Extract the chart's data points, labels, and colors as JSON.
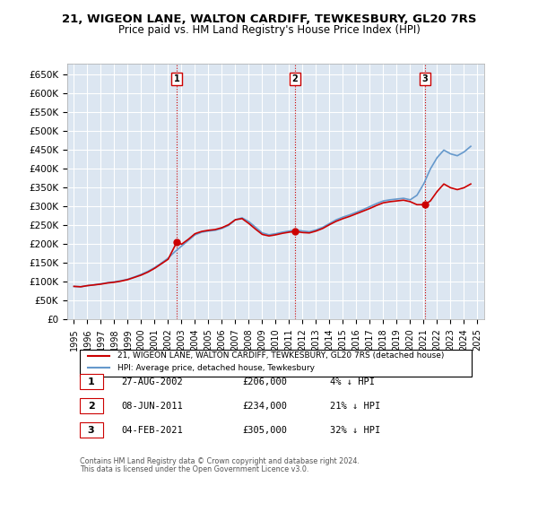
{
  "title1": "21, WIGEON LANE, WALTON CARDIFF, TEWKESBURY, GL20 7RS",
  "title2": "Price paid vs. HM Land Registry's House Price Index (HPI)",
  "ylabel_ticks": [
    "£0",
    "£50K",
    "£100K",
    "£150K",
    "£200K",
    "£250K",
    "£300K",
    "£350K",
    "£400K",
    "£450K",
    "£500K",
    "£550K",
    "£600K",
    "£650K"
  ],
  "ytick_vals": [
    0,
    50000,
    100000,
    150000,
    200000,
    250000,
    300000,
    350000,
    400000,
    450000,
    500000,
    550000,
    600000,
    650000
  ],
  "ylim": [
    0,
    680000
  ],
  "xlim_start": 1994.5,
  "xlim_end": 2025.5,
  "red_line_color": "#cc0000",
  "blue_line_color": "#6699cc",
  "background_color": "#dce6f1",
  "plot_bg_color": "#dce6f1",
  "grid_color": "#ffffff",
  "vline_color": "#cc0000",
  "sale_dates": [
    2002.65,
    2011.44,
    2021.09
  ],
  "sale_labels": [
    "1",
    "2",
    "3"
  ],
  "sale_prices": [
    206000,
    234000,
    305000
  ],
  "legend_line1": "21, WIGEON LANE, WALTON CARDIFF, TEWKESBURY, GL20 7RS (detached house)",
  "legend_line2": "HPI: Average price, detached house, Tewkesbury",
  "table_entries": [
    {
      "num": "1",
      "date": "27-AUG-2002",
      "price": "£206,000",
      "pct": "4% ↓ HPI"
    },
    {
      "num": "2",
      "date": "08-JUN-2011",
      "price": "£234,000",
      "pct": "21% ↓ HPI"
    },
    {
      "num": "3",
      "date": "04-FEB-2021",
      "price": "£305,000",
      "pct": "32% ↓ HPI"
    }
  ],
  "footnote1": "Contains HM Land Registry data © Crown copyright and database right 2024.",
  "footnote2": "This data is licensed under the Open Government Licence v3.0.",
  "hpi_years": [
    1995,
    1995.5,
    1996,
    1996.5,
    1997,
    1997.5,
    1998,
    1998.5,
    1999,
    1999.5,
    2000,
    2000.5,
    2001,
    2001.5,
    2002,
    2002.5,
    2003,
    2003.5,
    2004,
    2004.5,
    2005,
    2005.5,
    2006,
    2006.5,
    2007,
    2007.5,
    2008,
    2008.5,
    2009,
    2009.5,
    2010,
    2010.5,
    2011,
    2011.5,
    2012,
    2012.5,
    2013,
    2013.5,
    2014,
    2014.5,
    2015,
    2015.5,
    2016,
    2016.5,
    2017,
    2017.5,
    2018,
    2018.5,
    2019,
    2019.5,
    2020,
    2020.5,
    2021,
    2021.5,
    2022,
    2022.5,
    2023,
    2023.5,
    2024,
    2024.5
  ],
  "hpi_values": [
    88000,
    87000,
    90000,
    92000,
    95000,
    98000,
    100000,
    103000,
    107000,
    113000,
    120000,
    128000,
    138000,
    150000,
    163000,
    180000,
    195000,
    210000,
    225000,
    232000,
    235000,
    237000,
    242000,
    250000,
    265000,
    270000,
    260000,
    245000,
    230000,
    225000,
    228000,
    232000,
    235000,
    238000,
    235000,
    233000,
    238000,
    245000,
    255000,
    265000,
    272000,
    278000,
    285000,
    292000,
    300000,
    308000,
    315000,
    318000,
    320000,
    322000,
    318000,
    330000,
    360000,
    400000,
    430000,
    450000,
    440000,
    435000,
    445000,
    460000
  ],
  "red_years": [
    1995,
    1995.5,
    1996,
    1996.5,
    1997,
    1997.5,
    1998,
    1998.5,
    1999,
    1999.5,
    2000,
    2000.5,
    2001,
    2001.5,
    2002,
    2002.65,
    2003,
    2003.5,
    2004,
    2004.5,
    2005,
    2005.5,
    2006,
    2006.5,
    2007,
    2007.5,
    2008,
    2008.5,
    2009,
    2009.5,
    2010,
    2010.5,
    2011,
    2011.44,
    2012,
    2012.5,
    2013,
    2013.5,
    2014,
    2014.5,
    2015,
    2015.5,
    2016,
    2016.5,
    2017,
    2017.5,
    2018,
    2018.5,
    2019,
    2019.5,
    2020,
    2020.5,
    2021,
    2021.09,
    2021.5,
    2022,
    2022.5,
    2023,
    2023.5,
    2024,
    2024.5
  ],
  "red_values": [
    88000,
    87000,
    90000,
    92000,
    94000,
    97000,
    99000,
    102000,
    106000,
    112000,
    118000,
    126000,
    136000,
    148000,
    160000,
    206000,
    200000,
    213000,
    228000,
    234000,
    237000,
    239000,
    244000,
    252000,
    265000,
    268000,
    255000,
    240000,
    226000,
    222000,
    225000,
    229000,
    232000,
    234000,
    231000,
    230000,
    235000,
    242000,
    252000,
    261000,
    268000,
    274000,
    281000,
    288000,
    295000,
    303000,
    310000,
    313000,
    315000,
    317000,
    313000,
    305000,
    305000,
    305000,
    315000,
    340000,
    360000,
    350000,
    345000,
    350000,
    360000
  ]
}
